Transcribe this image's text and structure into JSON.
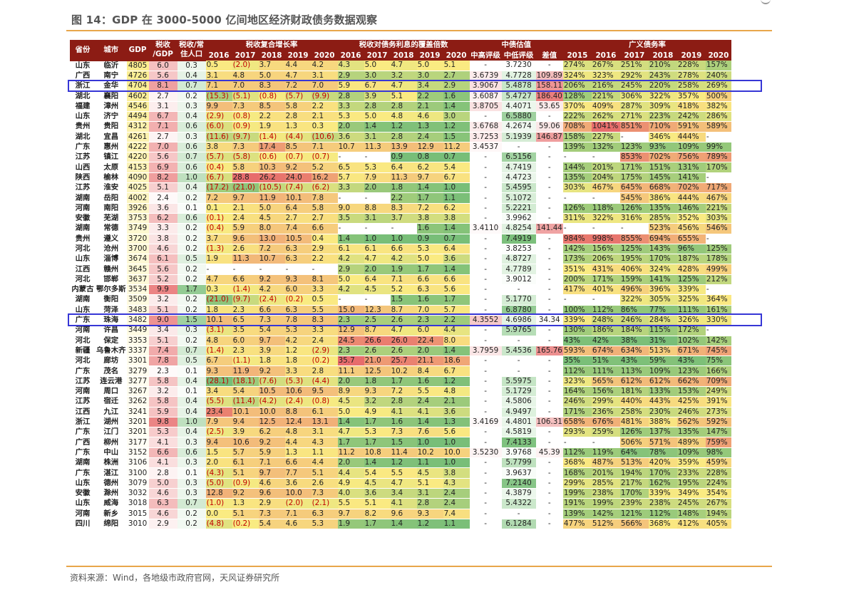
{
  "title": "图 14：GDP 在 3000-5000 亿间地区经济财政债务数据观察",
  "source": "资料来源：Wind，各地级市政府官网，天风证券研究所",
  "colors": {
    "header_bg": "#8c1c14",
    "accent_rule": "#e8a64b",
    "highlight_box": "#3737d6",
    "negative_text": "#c00000"
  },
  "headers": {
    "row1": [
      {
        "label": "省份",
        "rowspan": 2,
        "colspan": 1
      },
      {
        "label": "城市",
        "rowspan": 2,
        "colspan": 1
      },
      {
        "label": "GDP",
        "rowspan": 2,
        "colspan": 1
      },
      {
        "label": "税收\n/GDP",
        "rowspan": 2,
        "colspan": 1
      },
      {
        "label": "税收/常\n住人口",
        "rowspan": 2,
        "colspan": 1
      },
      {
        "label": "税收复合增长率",
        "rowspan": 1,
        "colspan": 5
      },
      {
        "label": "税收对债务利息的覆盖倍数",
        "rowspan": 1,
        "colspan": 5
      },
      {
        "label": "中债估值",
        "rowspan": 1,
        "colspan": 3
      },
      {
        "label": "广义债务率",
        "rowspan": 1,
        "colspan": 6
      }
    ],
    "row2": [
      "2016",
      "2017",
      "2018",
      "2019",
      "2020",
      "2016",
      "2017",
      "2018",
      "2019",
      "2020",
      "中高评级",
      "中低评级",
      "差值",
      "2015",
      "2016",
      "2017",
      "2018",
      "2019",
      "2020"
    ]
  },
  "highlighted_rows": [
    "金华",
    "珠海"
  ],
  "rows": [
    [
      "山东",
      "临沂",
      "4805",
      "6.0",
      "0.3",
      "0.5",
      "(2.0)",
      "3.7",
      "4.4",
      "4.2",
      "4.3",
      "5.0",
      "4.7",
      "5.0",
      "5.1",
      "-",
      "3.7230",
      "-",
      "274%",
      "267%",
      "251%",
      "210%",
      "228%",
      "157%"
    ],
    [
      "广西",
      "南宁",
      "4726",
      "5.6",
      "0.4",
      "3.1",
      "4.8",
      "5.0",
      "4.7",
      "3.1",
      "2.9",
      "3.0",
      "3.2",
      "3.0",
      "2.7",
      "3.6739",
      "4.7728",
      "109.89",
      "324%",
      "323%",
      "292%",
      "243%",
      "278%",
      "240%"
    ],
    [
      "浙江",
      "金华",
      "4704",
      "8.1",
      "0.7",
      "7.1",
      "7.0",
      "8.3",
      "7.2",
      "7.0",
      "5.9",
      "6.7",
      "4.7",
      "3.4",
      "2.9",
      "3.9067",
      "5.4878",
      "158.11",
      "206%",
      "216%",
      "245%",
      "220%",
      "258%",
      "269%"
    ],
    [
      "湖北",
      "襄阳",
      "4602",
      "2.7",
      "0.2",
      "(15.3)",
      "(5.1)",
      "(0.8)",
      "(5.7)",
      "(9.9)",
      "2.8",
      "3.9",
      "5.1",
      "2.2",
      "1.6",
      "3.6087",
      "5.4727",
      "186.40",
      "128%",
      "221%",
      "306%",
      "322%",
      "357%",
      "500%"
    ],
    [
      "福建",
      "漳州",
      "4546",
      "3.1",
      "0.3",
      "9.9",
      "7.3",
      "8.5",
      "5.8",
      "2.2",
      "3.3",
      "2.8",
      "2.8",
      "2.1",
      "1.4",
      "3.8705",
      "4.4071",
      "53.65",
      "370%",
      "409%",
      "287%",
      "309%",
      "418%",
      "382%"
    ],
    [
      "山东",
      "济宁",
      "4494",
      "6.7",
      "0.4",
      "(2.9)",
      "(0.8)",
      "2.2",
      "2.8",
      "2.1",
      "5.3",
      "5.0",
      "4.8",
      "4.6",
      "3.0",
      "-",
      "6.5880",
      "-",
      "222%",
      "262%",
      "271%",
      "223%",
      "242%",
      "286%"
    ],
    [
      "贵州",
      "贵阳",
      "4312",
      "7.1",
      "0.6",
      "(6.0)",
      "(0.9)",
      "1.9",
      "1.3",
      "0.3",
      "2.0",
      "1.4",
      "1.2",
      "1.3",
      "1.2",
      "3.6768",
      "4.2674",
      "59.06",
      "708%",
      "1041%",
      "851%",
      "710%",
      "591%",
      "589%"
    ],
    [
      "湖北",
      "宜昌",
      "4261",
      "2.7",
      "0.3",
      "(11.6)",
      "(9.7)",
      "(1.4)",
      "(4.4)",
      "(10.6)",
      "3.6",
      "3.1",
      "2.8",
      "2.4",
      "1.5",
      "3.7253",
      "5.1939",
      "146.87",
      "158%",
      "227%",
      "-",
      "346%",
      "444%",
      "-"
    ],
    [
      "广东",
      "惠州",
      "4222",
      "7.0",
      "0.6",
      "3.8",
      "7.3",
      "17.4",
      "8.5",
      "7.1",
      "10.7",
      "11.3",
      "13.9",
      "12.9",
      "11.2",
      "3.4537",
      "-",
      "-",
      "139%",
      "132%",
      "123%",
      "93%",
      "109%",
      "99%"
    ],
    [
      "江苏",
      "镇江",
      "4220",
      "5.6",
      "0.7",
      "(5.7)",
      "(5.8)",
      "(0.6)",
      "(0.7)",
      "(0.7)",
      "-",
      "-",
      "0.9",
      "0.8",
      "0.7",
      "-",
      "6.5156",
      "-",
      "-",
      "-",
      "853%",
      "702%",
      "756%",
      "789%"
    ],
    [
      "山西",
      "太原",
      "4153",
      "6.9",
      "0.6",
      "(0.4)",
      "5.8",
      "10.3",
      "9.2",
      "5.2",
      "6.5",
      "5.3",
      "6.4",
      "6.2",
      "5.4",
      "-",
      "4.7419",
      "-",
      "144%",
      "201%",
      "171%",
      "151%",
      "131%",
      "170%"
    ],
    [
      "陕西",
      "榆林",
      "4090",
      "8.2",
      "1.0",
      "(6.7)",
      "28.8",
      "26.2",
      "24.0",
      "16.2",
      "5.7",
      "7.9",
      "11.3",
      "9.7",
      "6.7",
      "-",
      "4.4723",
      "-",
      "135%",
      "204%",
      "175%",
      "145%",
      "141%",
      "-"
    ],
    [
      "江苏",
      "淮安",
      "4025",
      "5.1",
      "0.4",
      "(17.2)",
      "(21.0)",
      "(10.5)",
      "(7.4)",
      "(6.2)",
      "3.3",
      "2.0",
      "1.8",
      "1.4",
      "1.0",
      "-",
      "5.4595",
      "-",
      "303%",
      "467%",
      "645%",
      "668%",
      "702%",
      "717%"
    ],
    [
      "湖南",
      "岳阳",
      "4002",
      "2.4",
      "0.2",
      "7.2",
      "9.7",
      "11.9",
      "10.1",
      "7.8",
      "-",
      "-",
      "2.2",
      "1.7",
      "1.1",
      "-",
      "5.1072",
      "-",
      "-",
      "-",
      "545%",
      "386%",
      "444%",
      "467%"
    ],
    [
      "河南",
      "南阳",
      "3926",
      "3.6",
      "0.1",
      "0.1",
      "2.1",
      "5.0",
      "6.4",
      "5.8",
      "9.0",
      "8.8",
      "8.3",
      "7.2",
      "6.2",
      "-",
      "5.2221",
      "-",
      "126%",
      "118%",
      "126%",
      "135%",
      "146%",
      "221%"
    ],
    [
      "安徽",
      "芜湖",
      "3753",
      "6.2",
      "0.6",
      "(0.1)",
      "2.4",
      "4.5",
      "2.7",
      "2.7",
      "3.5",
      "3.1",
      "3.7",
      "3.8",
      "3.8",
      "-",
      "3.9962",
      "-",
      "311%",
      "322%",
      "316%",
      "285%",
      "352%",
      "303%"
    ],
    [
      "湖南",
      "常德",
      "3749",
      "3.3",
      "0.2",
      "(0.4)",
      "5.9",
      "8.0",
      "7.4",
      "6.6",
      "-",
      "-",
      "-",
      "1.6",
      "1.4",
      "3.4110",
      "4.8254",
      "141.44",
      "-",
      "-",
      "-",
      "523%",
      "456%",
      "546%"
    ],
    [
      "贵州",
      "遵义",
      "3720",
      "3.8",
      "0.2",
      "3.7",
      "9.6",
      "13.0",
      "10.5",
      "0.4",
      "1.4",
      "1.0",
      "1.0",
      "0.9",
      "0.7",
      "-",
      "7.4919",
      "-",
      "984%",
      "998%",
      "855%",
      "694%",
      "655%",
      "-"
    ],
    [
      "河北",
      "沧州",
      "3700",
      "4.6",
      "0.2",
      "(1.3)",
      "2.6",
      "7.2",
      "6.3",
      "2.9",
      "6.1",
      "6.1",
      "6.6",
      "5.3",
      "6.4",
      "-",
      "3.8253",
      "-",
      "142%",
      "156%",
      "125%",
      "143%",
      "96%",
      "125%"
    ],
    [
      "山东",
      "淄博",
      "3674",
      "6.1",
      "0.5",
      "1.9",
      "11.3",
      "10.7",
      "6.3",
      "2.2",
      "4.2",
      "4.7",
      "4.2",
      "5.0",
      "3.6",
      "-",
      "4.8727",
      "-",
      "173%",
      "206%",
      "195%",
      "170%",
      "187%",
      "178%"
    ],
    [
      "江西",
      "赣州",
      "3645",
      "5.6",
      "0.2",
      "-",
      "-",
      "-",
      "-",
      "-",
      "2.9",
      "2.0",
      "1.9",
      "1.7",
      "1.4",
      "-",
      "4.7789",
      "-",
      "351%",
      "431%",
      "406%",
      "324%",
      "428%",
      "499%"
    ],
    [
      "河北",
      "邯郸",
      "3637",
      "5.2",
      "0.2",
      "4.7",
      "6.6",
      "9.2",
      "9.3",
      "8.1",
      "5.0",
      "6.4",
      "7.1",
      "6.6",
      "6.6",
      "-",
      "3.9012",
      "-",
      "200%",
      "171%",
      "159%",
      "141%",
      "125%",
      "212%"
    ],
    [
      "内蒙古",
      "鄂尔多斯",
      "3534",
      "9.9",
      "1.7",
      "0.3",
      "(1.4)",
      "4.2",
      "6.0",
      "3.3",
      "4.2",
      "4.5",
      "5.2",
      "6.3",
      "5.6",
      "-",
      "-",
      "-",
      "417%",
      "401%",
      "496%",
      "396%",
      "339%",
      "-"
    ],
    [
      "湖南",
      "衡阳",
      "3509",
      "3.2",
      "0.2",
      "(21.0)",
      "(9.7)",
      "(2.4)",
      "(0.2)",
      "0.5",
      "-",
      "-",
      "1.5",
      "1.6",
      "1.7",
      "-",
      "5.1770",
      "-",
      "-",
      "-",
      "322%",
      "305%",
      "325%",
      "364%"
    ],
    [
      "山东",
      "菏泽",
      "3483",
      "5.1",
      "0.2",
      "1.8",
      "2.3",
      "6.6",
      "6.3",
      "5.5",
      "15.0",
      "12.3",
      "8.7",
      "7.0",
      "5.7",
      "-",
      "6.8780",
      "-",
      "100%",
      "112%",
      "86%",
      "77%",
      "111%",
      "161%"
    ],
    [
      "广东",
      "珠海",
      "3482",
      "9.0",
      "1.5",
      "10.1",
      "6.5",
      "7.3",
      "7.8",
      "8.3",
      "2.3",
      "2.5",
      "2.6",
      "2.3",
      "2.2",
      "4.3552",
      "4.6986",
      "34.34",
      "339%",
      "248%",
      "246%",
      "284%",
      "326%",
      "330%"
    ],
    [
      "河南",
      "许昌",
      "3449",
      "3.4",
      "0.3",
      "(3.1)",
      "3.5",
      "5.4",
      "5.3",
      "3.3",
      "12.9",
      "8.7",
      "4.7",
      "6.0",
      "4.4",
      "-",
      "5.9765",
      "-",
      "130%",
      "186%",
      "184%",
      "115%",
      "172%",
      "-"
    ],
    [
      "河北",
      "保定",
      "3353",
      "5.1",
      "0.2",
      "4.8",
      "6.0",
      "9.7",
      "4.2",
      "2.4",
      "24.5",
      "26.6",
      "26.0",
      "22.4",
      "8.0",
      "-",
      "-",
      "-",
      "43%",
      "42%",
      "38%",
      "31%",
      "102%",
      "142%"
    ],
    [
      "新疆",
      "乌鲁木齐",
      "3337",
      "7.4",
      "0.7",
      "(1.4)",
      "2.3",
      "3.9",
      "1.2",
      "(2.9)",
      "2.3",
      "2.6",
      "2.6",
      "2.0",
      "1.4",
      "3.7959",
      "5.4536",
      "165.76",
      "593%",
      "674%",
      "634%",
      "513%",
      "671%",
      "745%"
    ],
    [
      "河北",
      "廊坊",
      "3301",
      "7.8",
      "0.5",
      "6.7",
      "(1.1)",
      "1.8",
      "1.8",
      "(0.2)",
      "35.7",
      "21.0",
      "25.7",
      "21.1",
      "18.6",
      "-",
      "-",
      "-",
      "35%",
      "51%",
      "43%",
      "59%",
      "43%",
      "75%"
    ],
    [
      "广东",
      "茂名",
      "3279",
      "2.3",
      "0.1",
      "9.3",
      "11.9",
      "9.2",
      "3.3",
      "2.8",
      "11.1",
      "12.5",
      "10.2",
      "8.4",
      "6.7",
      "-",
      "-",
      "-",
      "112%",
      "111%",
      "113%",
      "109%",
      "123%",
      "166%"
    ],
    [
      "江苏",
      "连云港",
      "3277",
      "5.8",
      "0.4",
      "(28.1)",
      "(18.1)",
      "(7.6)",
      "(5.3)",
      "(4.4)",
      "2.0",
      "1.8",
      "1.7",
      "1.6",
      "1.2",
      "-",
      "5.5975",
      "-",
      "323%",
      "565%",
      "612%",
      "612%",
      "662%",
      "709%"
    ],
    [
      "河南",
      "周口",
      "3267",
      "3.2",
      "0.1",
      "3.4",
      "5.4",
      "10.5",
      "10.6",
      "9.5",
      "8.9",
      "9.3",
      "7.2",
      "5.5",
      "4.8",
      "-",
      "5.1729",
      "-",
      "164%",
      "156%",
      "181%",
      "133%",
      "153%",
      "249%"
    ],
    [
      "江苏",
      "宿迁",
      "3262",
      "5.8",
      "0.4",
      "(5.5)",
      "(11.4)",
      "(4.2)",
      "(2.4)",
      "(0.8)",
      "4.5",
      "3.2",
      "2.8",
      "2.4",
      "2.1",
      "-",
      "4.5806",
      "-",
      "246%",
      "299%",
      "440%",
      "443%",
      "425%",
      "391%"
    ],
    [
      "江西",
      "九江",
      "3241",
      "5.9",
      "0.4",
      "23.4",
      "10.1",
      "10.0",
      "8.8",
      "6.1",
      "5.0",
      "4.9",
      "4.1",
      "4.1",
      "3.6",
      "-",
      "4.9497",
      "-",
      "171%",
      "236%",
      "258%",
      "230%",
      "246%",
      "273%"
    ],
    [
      "浙江",
      "湖州",
      "3201",
      "9.8",
      "1.0",
      "7.9",
      "9.4",
      "12.5",
      "12.4",
      "13.1",
      "1.4",
      "1.7",
      "1.6",
      "1.4",
      "1.3",
      "3.4169",
      "4.4801",
      "106.31",
      "658%",
      "676%",
      "481%",
      "388%",
      "562%",
      "592%"
    ],
    [
      "广东",
      "江门",
      "3201",
      "5.3",
      "0.4",
      "(2.5)",
      "3.9",
      "6.2",
      "4.8",
      "3.1",
      "4.7",
      "5.3",
      "7.3",
      "7.6",
      "5.6",
      "-",
      "4.5819",
      "-",
      "293%",
      "259%",
      "126%",
      "137%",
      "135%",
      "147%"
    ],
    [
      "广西",
      "柳州",
      "3177",
      "4.1",
      "0.3",
      "9.4",
      "10.6",
      "9.2",
      "4.4",
      "4.3",
      "1.7",
      "1.7",
      "1.5",
      "1.0",
      "1.0",
      "-",
      "7.4133",
      "-",
      "-",
      "-",
      "506%",
      "571%",
      "489%",
      "759%"
    ],
    [
      "广东",
      "中山",
      "3152",
      "6.6",
      "0.6",
      "1.5",
      "5.7",
      "5.9",
      "1.3",
      "1.1",
      "11.2",
      "10.8",
      "11.4",
      "10.2",
      "10.0",
      "3.5230",
      "3.9768",
      "45.39",
      "112%",
      "119%",
      "64%",
      "78%",
      "109%",
      "98%"
    ],
    [
      "湖南",
      "株洲",
      "3106",
      "4.1",
      "0.3",
      "2.0",
      "6.1",
      "7.1",
      "6.6",
      "4.4",
      "2.0",
      "1.4",
      "1.2",
      "1.1",
      "1.0",
      "-",
      "5.7799",
      "-",
      "368%",
      "487%",
      "513%",
      "420%",
      "359%",
      "459%"
    ],
    [
      "广东",
      "湛江",
      "3100",
      "2.8",
      "0.1",
      "(4.3)",
      "5.1",
      "9.7",
      "7.7",
      "5.1",
      "4.4",
      "5.4",
      "5.5",
      "4.5",
      "3.8",
      "-",
      "3.9637",
      "-",
      "168%",
      "201%",
      "194%",
      "170%",
      "233%",
      "228%"
    ],
    [
      "山东",
      "德州",
      "3079",
      "5.0",
      "0.3",
      "(5.0)",
      "(0.9)",
      "4.6",
      "3.6",
      "2.6",
      "4.9",
      "4.5",
      "4.7",
      "5.1",
      "4.3",
      "-",
      "7.2140",
      "-",
      "299%",
      "285%",
      "217%",
      "162%",
      "195%",
      "224%"
    ],
    [
      "安徽",
      "滁州",
      "3032",
      "4.6",
      "0.3",
      "12.8",
      "9.2",
      "9.6",
      "10.0",
      "7.3",
      "4.0",
      "3.6",
      "3.4",
      "3.1",
      "2.4",
      "-",
      "4.3879",
      "-",
      "199%",
      "238%",
      "170%",
      "339%",
      "349%",
      "354%"
    ],
    [
      "山东",
      "威海",
      "3018",
      "6.3",
      "0.7",
      "(1.0)",
      "1.3",
      "2.9",
      "(2.0)",
      "(2.1)",
      "5.5",
      "5.1",
      "4.1",
      "2.8",
      "2.4",
      "-",
      "5.4322",
      "-",
      "191%",
      "199%",
      "239%",
      "238%",
      "245%",
      "267%"
    ],
    [
      "河南",
      "新乡",
      "3015",
      "4.6",
      "0.2",
      "0.0",
      "5.1",
      "7.3",
      "7.1",
      "6.3",
      "9.7",
      "8.2",
      "9.6",
      "9.3",
      "7.4",
      "-",
      "-",
      "-",
      "139%",
      "142%",
      "121%",
      "112%",
      "148%",
      "194%"
    ],
    [
      "四川",
      "绵阳",
      "3010",
      "2.9",
      "0.2",
      "(4.8)",
      "(0.2)",
      "5.4",
      "4.6",
      "5.3",
      "1.9",
      "1.7",
      "1.4",
      "1.2",
      "1.1",
      "-",
      "6.1284",
      "-",
      "477%",
      "512%",
      "566%",
      "368%",
      "412%",
      "405%"
    ]
  ]
}
